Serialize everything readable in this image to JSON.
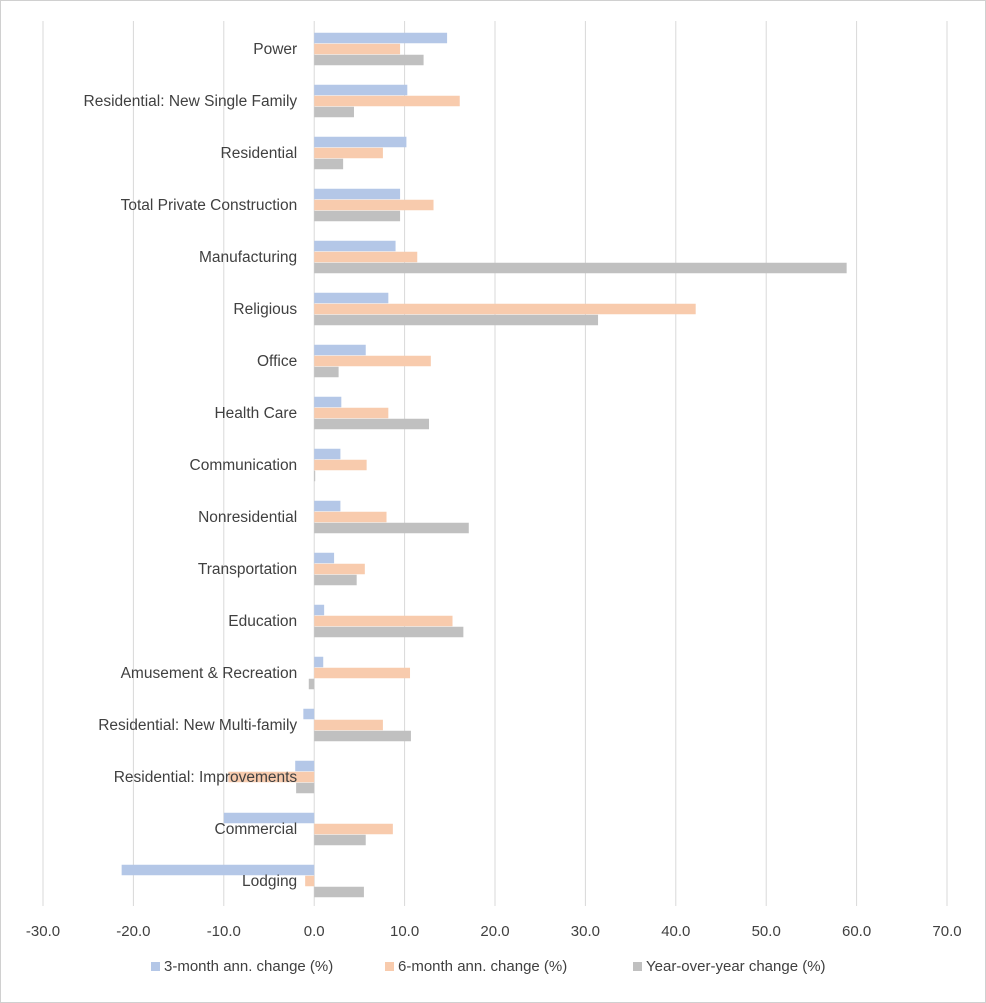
{
  "chart_data": {
    "type": "bar",
    "orientation": "horizontal",
    "title": "",
    "xlabel": "",
    "ylabel": "",
    "xlim": [
      -30,
      70
    ],
    "x_ticks": [
      -30,
      -20,
      -10,
      0,
      10,
      20,
      30,
      40,
      50,
      60,
      70
    ],
    "x_tick_labels": [
      "-30.0",
      "-20.0",
      "-10.0",
      "0.0",
      "10.0",
      "20.0",
      "30.0",
      "40.0",
      "50.0",
      "60.0",
      "70.0"
    ],
    "grid": "vertical",
    "legend_position": "bottom",
    "categories": [
      "Power",
      "Residential: New Single Family",
      "Residential",
      "Total Private Construction",
      "Manufacturing",
      "Religious",
      "Office",
      "Health Care",
      "Communication",
      "Nonresidential",
      "Transportation",
      "Education",
      "Amusement & Recreation",
      "Residential: New Multi-family",
      "Residential: Improvements",
      "Commercial",
      "Lodging"
    ],
    "series": [
      {
        "name": "3-month ann. change (%)",
        "color": "#b4c7e7",
        "values": [
          14.7,
          10.3,
          10.2,
          9.5,
          9.0,
          8.2,
          5.7,
          3.0,
          2.9,
          2.9,
          2.2,
          1.1,
          1.0,
          -1.2,
          -2.1,
          -10.0,
          -21.3
        ]
      },
      {
        "name": "6-month ann. change (%)",
        "color": "#f8cbad",
        "values": [
          9.5,
          16.1,
          7.6,
          13.2,
          11.4,
          42.2,
          12.9,
          8.2,
          5.8,
          8.0,
          5.6,
          15.3,
          10.6,
          7.6,
          -9.5,
          8.7,
          -1.0
        ]
      },
      {
        "name": "Year-over-year change (%)",
        "color": "#c0c0c0",
        "values": [
          12.1,
          4.4,
          3.2,
          9.5,
          58.9,
          31.4,
          2.7,
          12.7,
          0.0,
          17.1,
          4.7,
          16.5,
          -0.6,
          10.7,
          -2.0,
          5.7,
          5.5
        ]
      }
    ]
  }
}
